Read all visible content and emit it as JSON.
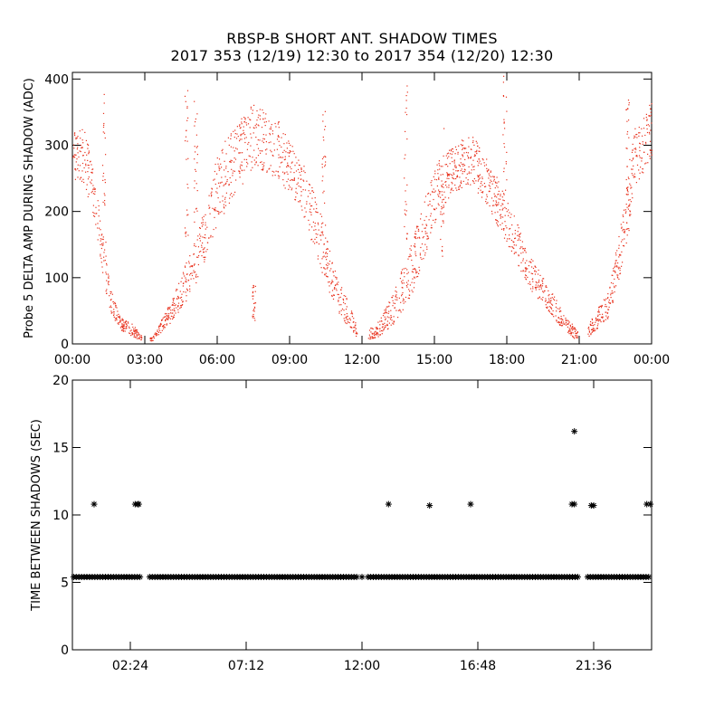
{
  "title_line1": "RBSP-B SHORT ANT. SHADOW TIMES",
  "title_line2": "2017 353 (12/19) 12:30 to 2017 354 (12/20) 12:30",
  "colors": {
    "amp_points": "#e8321e",
    "interval_points": "#000000",
    "axes": "#000000",
    "background": "#ffffff"
  },
  "chart_data": [
    {
      "type": "scatter",
      "title": "",
      "ylabel": "Probe 5 DELTA AMP DURING SHADOW (ADC)",
      "xlabel": "",
      "xlim": [
        0,
        24
      ],
      "ylim": [
        0,
        410
      ],
      "xticklabels": [
        "00:00",
        "03:00",
        "06:00",
        "09:00",
        "12:00",
        "15:00",
        "18:00",
        "21:00",
        "00:00"
      ],
      "xticks": [
        0,
        3,
        6,
        9,
        12,
        15,
        18,
        21,
        24
      ],
      "yticks": [
        0,
        100,
        200,
        300,
        400
      ],
      "grid": false,
      "series": [
        {
          "envelope_hours": [
            0.0,
            0.5,
            1.0,
            1.3,
            1.6,
            2.0,
            2.5,
            2.8,
            3.3,
            4.0,
            5.0,
            5.6,
            6.0,
            7.0,
            7.5,
            8.5,
            9.5,
            10.2,
            10.8,
            11.5,
            11.9,
            12.6,
            13.3,
            14.0,
            15.0,
            15.7,
            16.5,
            17.2,
            18.0,
            19.0,
            20.0,
            20.8,
            21.1,
            21.5,
            22.2,
            22.8,
            23.3,
            24.0
          ],
          "envelope_lower": [
            250,
            240,
            160,
            90,
            45,
            20,
            12,
            5,
            5,
            30,
            80,
            140,
            180,
            240,
            270,
            250,
            200,
            120,
            60,
            20,
            5,
            10,
            30,
            70,
            180,
            230,
            240,
            210,
            150,
            80,
            35,
            8,
            5,
            15,
            40,
            120,
            240,
            280
          ],
          "envelope_upper": [
            320,
            330,
            230,
            150,
            80,
            40,
            30,
            15,
            10,
            60,
            150,
            220,
            290,
            345,
            365,
            340,
            280,
            210,
            120,
            55,
            15,
            30,
            80,
            150,
            270,
            300,
            320,
            280,
            220,
            130,
            70,
            25,
            12,
            40,
            80,
            200,
            330,
            370
          ]
        }
      ]
    },
    {
      "type": "scatter",
      "title": "",
      "ylabel": "TIME BETWEEN SHADOWS (SEC)",
      "xlabel": "",
      "xlim": [
        0,
        24
      ],
      "ylim": [
        0,
        20
      ],
      "xticklabels": [
        "02:24",
        "07:12",
        "12:00",
        "16:48",
        "21:36"
      ],
      "xticks": [
        2.4,
        7.2,
        12.0,
        16.8,
        21.6
      ],
      "yticks": [
        0,
        5,
        10,
        15,
        20
      ],
      "grid": false,
      "series": [
        {
          "marker": "*",
          "baseline_value": 5.4,
          "baseline_segments": [
            [
              0.05,
              2.85
            ],
            [
              3.2,
              11.8
            ],
            [
              12.25,
              20.95
            ],
            [
              21.35,
              23.95
            ]
          ],
          "outliers": [
            {
              "x": 0.9,
              "y": 10.8
            },
            {
              "x": 2.6,
              "y": 10.8
            },
            {
              "x": 2.7,
              "y": 10.8
            },
            {
              "x": 2.75,
              "y": 10.8
            },
            {
              "x": 12.0,
              "y": 5.4
            },
            {
              "x": 13.1,
              "y": 10.8
            },
            {
              "x": 14.8,
              "y": 10.7
            },
            {
              "x": 16.5,
              "y": 10.8
            },
            {
              "x": 20.8,
              "y": 16.2
            },
            {
              "x": 20.7,
              "y": 10.8
            },
            {
              "x": 20.8,
              "y": 10.8
            },
            {
              "x": 21.5,
              "y": 10.7
            },
            {
              "x": 21.6,
              "y": 10.7
            },
            {
              "x": 23.8,
              "y": 10.8
            },
            {
              "x": 23.95,
              "y": 10.8
            }
          ]
        }
      ]
    }
  ]
}
